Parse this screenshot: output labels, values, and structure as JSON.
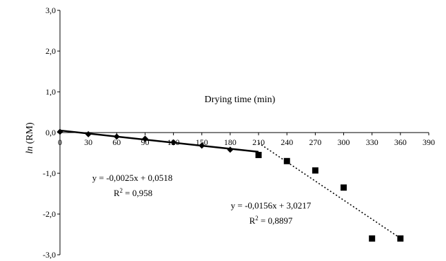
{
  "chart_data": {
    "type": "scatter",
    "title": "",
    "xlabel": "Drying time (min)",
    "ylabel_italic": "ln",
    "ylabel_rest": " (RM)",
    "xlim": [
      0,
      390
    ],
    "ylim": [
      -3,
      3
    ],
    "x_ticks": [
      0,
      30,
      60,
      90,
      120,
      150,
      180,
      210,
      240,
      270,
      300,
      330,
      360,
      390
    ],
    "x_tick_labels": [
      "0",
      "30",
      "60",
      "90",
      "120",
      "150",
      "180",
      "210",
      "240",
      "270",
      "300",
      "330",
      "360",
      "390"
    ],
    "y_ticks": [
      3,
      2,
      1,
      0,
      -1,
      -2,
      -3
    ],
    "y_tick_labels": [
      "3,0",
      "2,0",
      "1,0",
      "0,0",
      "-1,0",
      "-2,0",
      "-3,0"
    ],
    "grid": false,
    "series": [
      {
        "marker": "diamond",
        "color": "#000000",
        "points": [
          {
            "x": 0,
            "y": 0.02
          },
          {
            "x": 30,
            "y": -0.04
          },
          {
            "x": 60,
            "y": -0.1
          },
          {
            "x": 90,
            "y": -0.15
          },
          {
            "x": 120,
            "y": -0.24
          },
          {
            "x": 150,
            "y": -0.32
          },
          {
            "x": 180,
            "y": -0.42
          }
        ],
        "trendline": {
          "slope": -0.0025,
          "intercept": 0.0518,
          "x_range": [
            0,
            210
          ],
          "style": "solid"
        }
      },
      {
        "marker": "square",
        "color": "#000000",
        "points": [
          {
            "x": 210,
            "y": -0.55
          },
          {
            "x": 240,
            "y": -0.7
          },
          {
            "x": 270,
            "y": -0.93
          },
          {
            "x": 300,
            "y": -1.35
          },
          {
            "x": 330,
            "y": -2.6
          },
          {
            "x": 360,
            "y": -2.6
          }
        ],
        "trendline": {
          "slope": -0.0156,
          "intercept": 3.0217,
          "x_range": [
            210,
            360
          ],
          "style": "dotted"
        }
      }
    ],
    "annotations": [
      {
        "equation": "y = -0,0025x + 0,0518",
        "r2_prefix": "R",
        "r2_sup": "2",
        "r2_value": " = 0,958"
      },
      {
        "equation": "y = -0,0156x + 3,0217",
        "r2_prefix": "R",
        "r2_sup": "2",
        "r2_value": " = 0,8897"
      }
    ]
  }
}
